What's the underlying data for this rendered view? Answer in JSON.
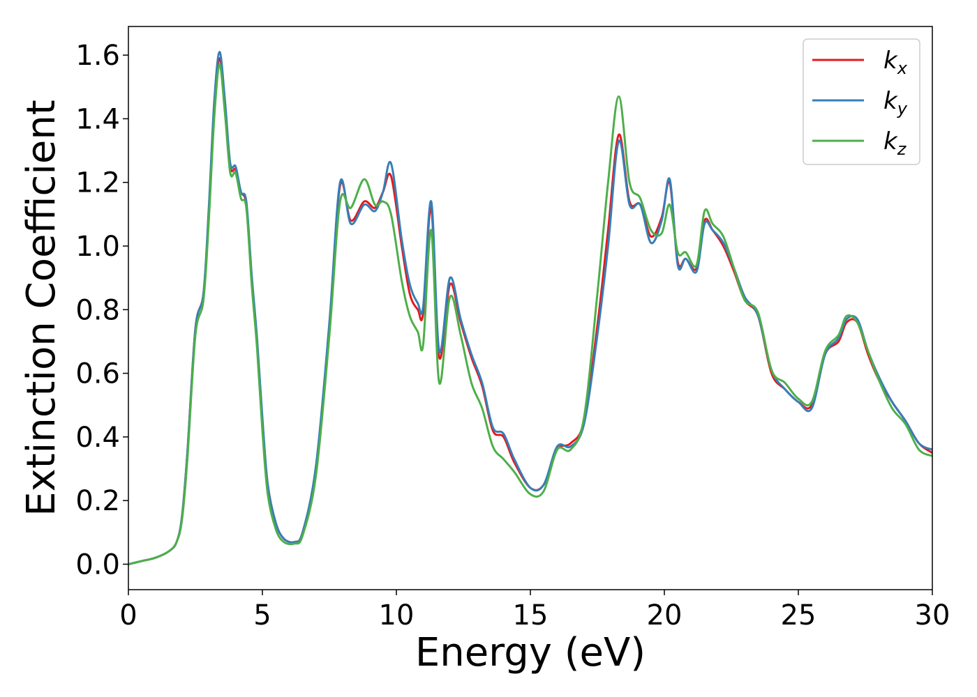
{
  "chart_data": {
    "type": "line",
    "title": "",
    "xlabel": "Energy (eV)",
    "ylabel": "Extinction Coefficient",
    "xlim": [
      0,
      30
    ],
    "ylim": [
      -0.08,
      1.69
    ],
    "xticks": [
      0,
      5,
      10,
      15,
      20,
      25,
      30
    ],
    "xtick_labels": [
      "0",
      "5",
      "10",
      "15",
      "20",
      "25",
      "30"
    ],
    "yticks": [
      0.0,
      0.2,
      0.4,
      0.6,
      0.8,
      1.0,
      1.2,
      1.4,
      1.6
    ],
    "ytick_labels": [
      "0.0",
      "0.2",
      "0.4",
      "0.6",
      "0.8",
      "1.0",
      "1.2",
      "1.4",
      "1.6"
    ],
    "grid": false,
    "legend_position": "top-right",
    "series": [
      {
        "name": "k_x",
        "label_main": "k",
        "label_sub": "x",
        "color": "#e41a1c",
        "x": [
          0,
          0.5,
          1,
          1.5,
          1.8,
          2,
          2.2,
          2.5,
          2.8,
          3,
          3.2,
          3.4,
          3.6,
          3.8,
          4,
          4.2,
          4.4,
          4.6,
          4.8,
          5,
          5.2,
          5.5,
          5.8,
          6.2,
          6.5,
          7,
          7.5,
          7.9,
          8.3,
          8.8,
          9.2,
          9.5,
          9.8,
          10.2,
          10.5,
          10.8,
          11,
          11.3,
          11.6,
          12,
          12.4,
          12.8,
          13.2,
          13.6,
          14,
          14.4,
          15,
          15.5,
          16,
          16.5,
          17,
          17.5,
          17.9,
          18.3,
          18.7,
          19.1,
          19.5,
          19.9,
          20.2,
          20.5,
          20.8,
          21.2,
          21.5,
          21.8,
          22.2,
          22.6,
          23,
          23.5,
          24,
          24.5,
          25,
          25.5,
          26,
          26.5,
          26.8,
          27.2,
          27.6,
          28,
          28.5,
          29,
          29.5,
          30
        ],
        "y": [
          0.0,
          0.01,
          0.02,
          0.04,
          0.07,
          0.15,
          0.35,
          0.74,
          0.85,
          1.1,
          1.42,
          1.59,
          1.45,
          1.25,
          1.24,
          1.17,
          1.13,
          0.9,
          0.7,
          0.45,
          0.25,
          0.13,
          0.08,
          0.07,
          0.1,
          0.3,
          0.75,
          1.19,
          1.08,
          1.14,
          1.12,
          1.17,
          1.22,
          1.0,
          0.85,
          0.8,
          0.79,
          1.12,
          0.65,
          0.88,
          0.76,
          0.65,
          0.56,
          0.42,
          0.4,
          0.32,
          0.24,
          0.25,
          0.36,
          0.38,
          0.45,
          0.75,
          1.05,
          1.35,
          1.14,
          1.13,
          1.03,
          1.09,
          1.2,
          0.95,
          0.96,
          0.93,
          1.08,
          1.05,
          1.0,
          0.92,
          0.83,
          0.78,
          0.6,
          0.55,
          0.51,
          0.5,
          0.66,
          0.7,
          0.76,
          0.76,
          0.66,
          0.58,
          0.51,
          0.45,
          0.38,
          0.35
        ]
      },
      {
        "name": "k_y",
        "label_main": "k",
        "label_sub": "y",
        "color": "#377eb8",
        "x": [
          0,
          0.5,
          1,
          1.5,
          1.8,
          2,
          2.2,
          2.5,
          2.8,
          3,
          3.2,
          3.4,
          3.6,
          3.8,
          4,
          4.2,
          4.4,
          4.6,
          4.8,
          5,
          5.2,
          5.5,
          5.8,
          6.2,
          6.5,
          7,
          7.5,
          7.9,
          8.3,
          8.8,
          9.2,
          9.5,
          9.8,
          10.2,
          10.5,
          10.8,
          11,
          11.3,
          11.6,
          12,
          12.4,
          12.8,
          13.2,
          13.6,
          14,
          14.4,
          15,
          15.5,
          16,
          16.5,
          17,
          17.5,
          17.9,
          18.3,
          18.7,
          19.1,
          19.5,
          19.9,
          20.2,
          20.5,
          20.8,
          21.2,
          21.5,
          21.8,
          22.2,
          22.6,
          23,
          23.5,
          24,
          24.5,
          25,
          25.5,
          26,
          26.5,
          26.8,
          27.2,
          27.6,
          28,
          28.5,
          29,
          29.5,
          30
        ],
        "y": [
          0.0,
          0.01,
          0.02,
          0.04,
          0.07,
          0.15,
          0.35,
          0.74,
          0.85,
          1.12,
          1.45,
          1.61,
          1.46,
          1.26,
          1.25,
          1.17,
          1.14,
          0.91,
          0.71,
          0.46,
          0.25,
          0.13,
          0.08,
          0.07,
          0.1,
          0.31,
          0.76,
          1.2,
          1.07,
          1.13,
          1.11,
          1.17,
          1.26,
          1.02,
          0.88,
          0.82,
          0.81,
          1.14,
          0.67,
          0.9,
          0.77,
          0.66,
          0.57,
          0.43,
          0.41,
          0.33,
          0.24,
          0.25,
          0.37,
          0.37,
          0.44,
          0.72,
          1.0,
          1.33,
          1.13,
          1.13,
          1.01,
          1.08,
          1.21,
          0.94,
          0.96,
          0.92,
          1.07,
          1.05,
          1.01,
          0.93,
          0.84,
          0.78,
          0.61,
          0.55,
          0.51,
          0.49,
          0.66,
          0.71,
          0.77,
          0.77,
          0.67,
          0.59,
          0.51,
          0.45,
          0.38,
          0.36
        ]
      },
      {
        "name": "k_z",
        "label_main": "k",
        "label_sub": "z",
        "color": "#4daf4a",
        "x": [
          0,
          0.5,
          1,
          1.5,
          1.8,
          2,
          2.2,
          2.5,
          2.8,
          3,
          3.2,
          3.4,
          3.6,
          3.8,
          4,
          4.2,
          4.4,
          4.6,
          4.8,
          5,
          5.2,
          5.5,
          5.8,
          6.2,
          6.5,
          7,
          7.5,
          7.9,
          8.3,
          8.8,
          9.2,
          9.5,
          9.8,
          10.2,
          10.5,
          10.8,
          11,
          11.3,
          11.6,
          12,
          12.4,
          12.8,
          13.2,
          13.6,
          14,
          14.4,
          15,
          15.5,
          16,
          16.5,
          17,
          17.5,
          17.9,
          18.3,
          18.7,
          19.1,
          19.5,
          19.9,
          20.2,
          20.5,
          20.8,
          21.2,
          21.5,
          21.8,
          22.2,
          22.6,
          23,
          23.5,
          24,
          24.5,
          25,
          25.5,
          26,
          26.5,
          26.8,
          27.2,
          27.6,
          28,
          28.5,
          29,
          29.5,
          30
        ],
        "y": [
          0.0,
          0.01,
          0.02,
          0.04,
          0.07,
          0.14,
          0.33,
          0.72,
          0.83,
          1.08,
          1.4,
          1.57,
          1.42,
          1.23,
          1.23,
          1.15,
          1.12,
          0.88,
          0.68,
          0.42,
          0.22,
          0.11,
          0.07,
          0.065,
          0.09,
          0.28,
          0.72,
          1.14,
          1.12,
          1.21,
          1.13,
          1.14,
          1.1,
          0.89,
          0.78,
          0.73,
          0.69,
          1.05,
          0.57,
          0.84,
          0.72,
          0.57,
          0.49,
          0.37,
          0.33,
          0.29,
          0.22,
          0.23,
          0.36,
          0.36,
          0.46,
          0.85,
          1.2,
          1.47,
          1.2,
          1.15,
          1.05,
          1.04,
          1.13,
          0.98,
          0.98,
          0.94,
          1.11,
          1.07,
          1.03,
          0.93,
          0.83,
          0.79,
          0.61,
          0.57,
          0.52,
          0.51,
          0.67,
          0.72,
          0.78,
          0.76,
          0.67,
          0.58,
          0.49,
          0.44,
          0.36,
          0.34
        ]
      }
    ]
  }
}
